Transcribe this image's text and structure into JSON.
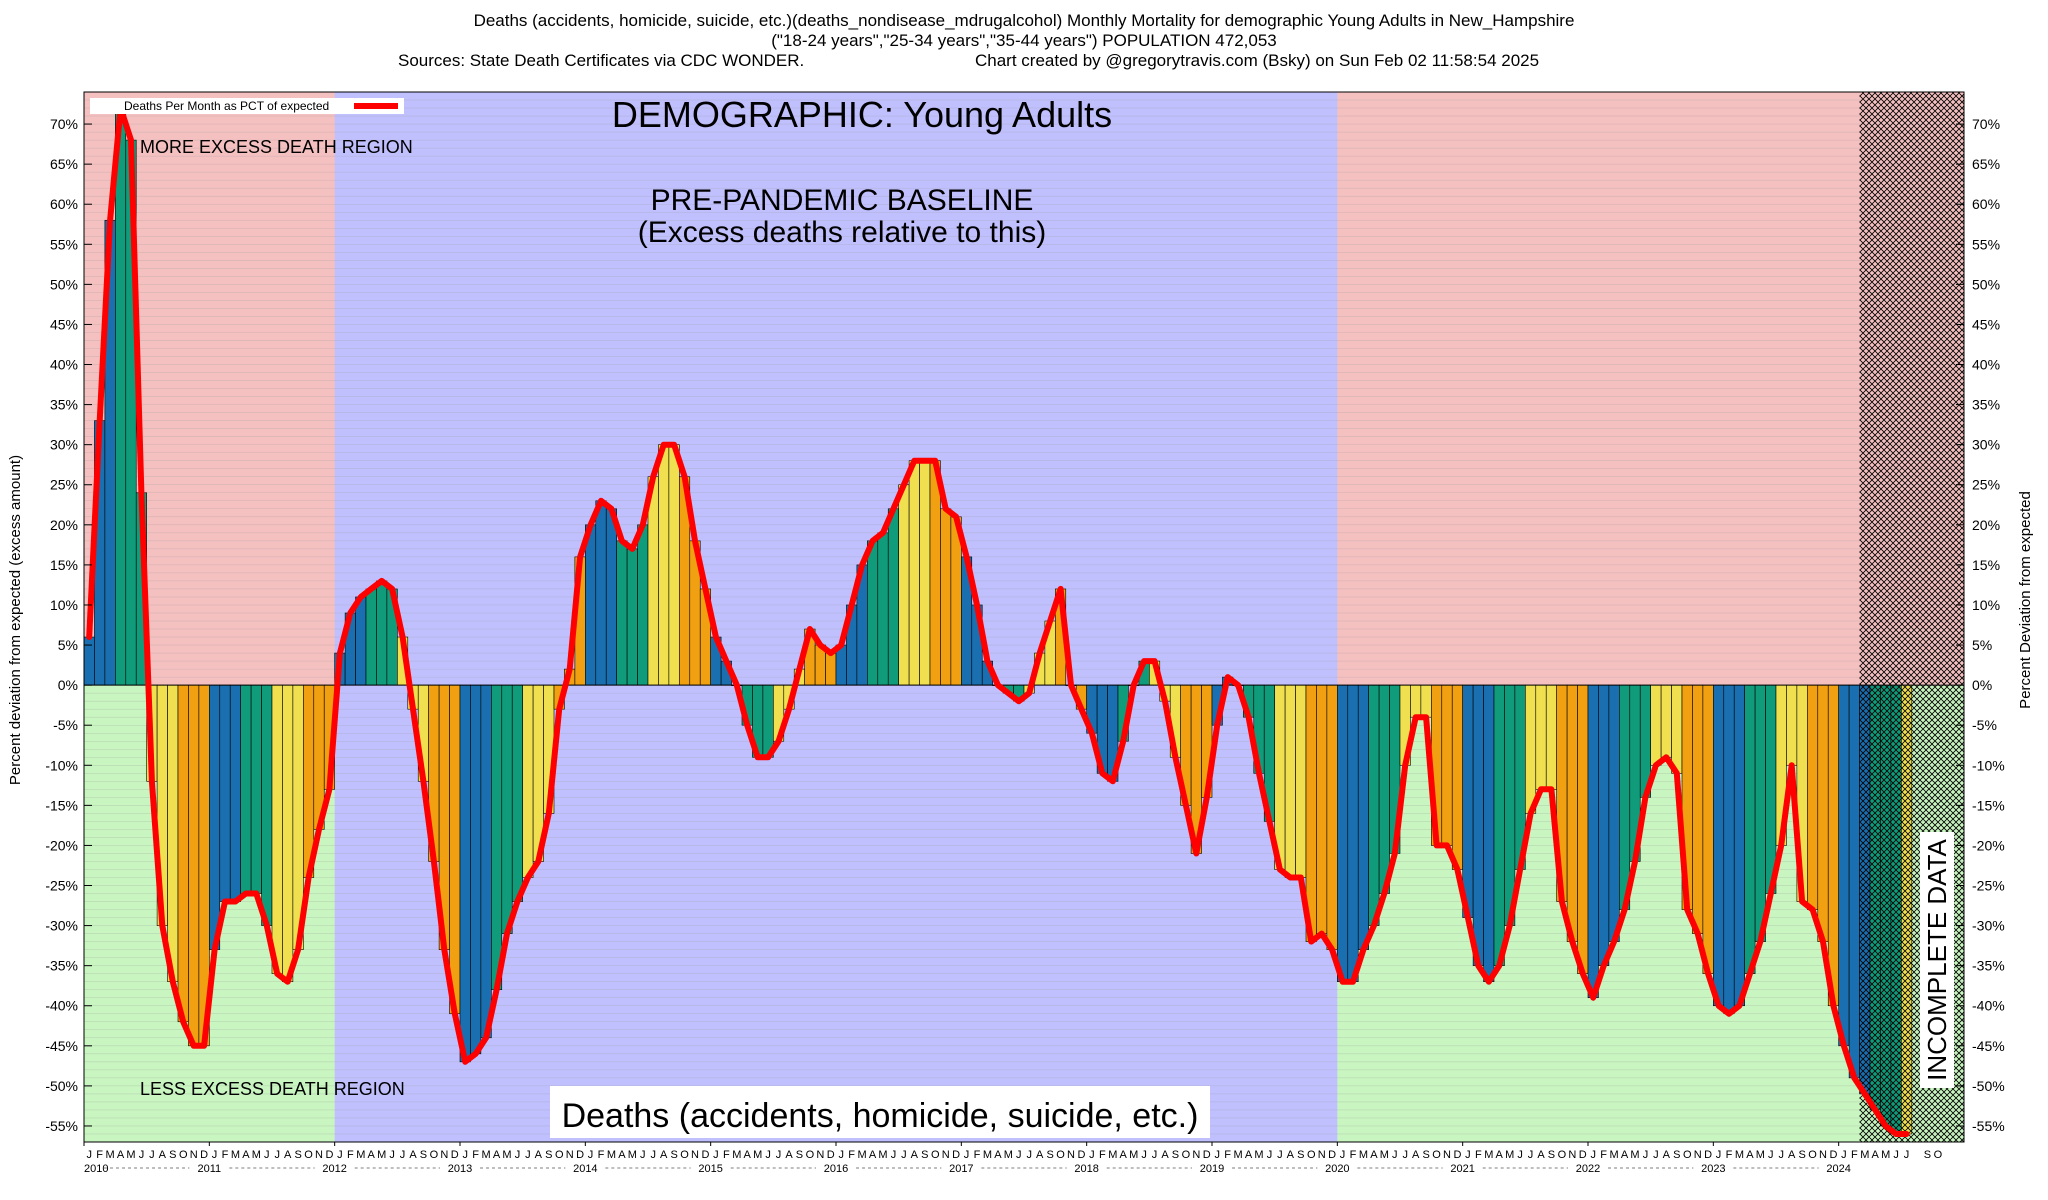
{
  "header": {
    "line1": "Deaths (accidents, homicide, suicide, etc.)(deaths_nondisease_mdrugalcohol) Monthly Mortality for demographic Young Adults in New_Hampshire",
    "line2": "(\"18-24 years\",\"25-34 years\",\"35-44 years\") POPULATION 472,053",
    "line3_left": "Sources: State Death Certificates via CDC WONDER.",
    "line3_right": "Chart created by @gregorytravis.com (Bsky) on Sun Feb 02 11:58:54 2025"
  },
  "colors": {
    "excess_region": "#f5c0c0",
    "deficit_region": "#c8f5c0",
    "baseline_region": "#c0c0ff",
    "line": "#ff0000",
    "bar_palette": [
      "#1a6fb0",
      "#109c7a",
      "#f0e050",
      "#f0a010"
    ]
  },
  "chart_data": {
    "type": "bar",
    "title": "DEMOGRAPHIC: Young Adults",
    "subtitle": "Deaths (accidents, homicide, suicide, etc.)",
    "ylabel_left": "Percent deviation from expected (excess amount)",
    "ylabel_right": "Percent Deviation from expected",
    "legend": "Deaths Per Month as PCT of expected",
    "legend_position": "top-left",
    "ylim": [
      -57,
      74
    ],
    "yticks": [
      -55,
      -50,
      -45,
      -40,
      -35,
      -30,
      -25,
      -20,
      -15,
      -10,
      -5,
      0,
      5,
      10,
      15,
      20,
      25,
      30,
      35,
      40,
      45,
      50,
      55,
      60,
      65,
      70
    ],
    "x_start": "2010-01",
    "years": [
      "2010",
      "2011",
      "2012",
      "2013",
      "2014",
      "2015",
      "2016",
      "2017",
      "2018",
      "2019",
      "2020",
      "2021",
      "2022",
      "2023",
      "2024"
    ],
    "month_letters": [
      "J",
      "F",
      "M",
      "A",
      "M",
      "J",
      "J",
      "A",
      "S",
      "O",
      "N",
      "D"
    ],
    "regions": {
      "excess_label": "MORE EXCESS DEATH REGION",
      "deficit_label": "LESS EXCESS DEATH REGION",
      "baseline_label_1": "PRE-PANDEMIC BASELINE",
      "baseline_label_2": "(Excess deaths relative to this)",
      "baseline_start": "2012-01",
      "baseline_end": "2019-12",
      "incomplete_label": "INCOMPLETE DATA",
      "incomplete_start": "2024-03"
    },
    "values": [
      6,
      33,
      58,
      72,
      68,
      24,
      -12,
      -30,
      -37,
      -42,
      -45,
      -45,
      -33,
      -27,
      -27,
      -26,
      -26,
      -30,
      -36,
      -37,
      -33,
      -24,
      -18,
      -13,
      4,
      9,
      11,
      12,
      13,
      12,
      6,
      -3,
      -12,
      -22,
      -33,
      -41,
      -47,
      -46,
      -44,
      -38,
      -31,
      -27,
      -24,
      -22,
      -16,
      -3,
      2,
      16,
      20,
      23,
      22,
      18,
      17,
      20,
      26,
      30,
      30,
      26,
      18,
      12,
      6,
      3,
      0,
      -5,
      -9,
      -9,
      -7,
      -3,
      2,
      7,
      5,
      4,
      5,
      10,
      15,
      18,
      19,
      22,
      25,
      28,
      28,
      28,
      22,
      21,
      16,
      10,
      3,
      0,
      -1,
      -2,
      -1,
      4,
      8,
      12,
      0,
      -3,
      -6,
      -11,
      -12,
      -7,
      0,
      3,
      3,
      -2,
      -9,
      -15,
      -21,
      -14,
      -5,
      1,
      0,
      -4,
      -11,
      -17,
      -23,
      -24,
      -24,
      -32,
      -31,
      -33,
      -37,
      -37,
      -33,
      -30,
      -26,
      -21,
      -10,
      -4,
      -4,
      -20,
      -20,
      -23,
      -29,
      -35,
      -37,
      -35,
      -30,
      -23,
      -16,
      -13,
      -13,
      -27,
      -32,
      -36,
      -39,
      -35,
      -32,
      -28,
      -22,
      -14,
      -10,
      -9,
      -11,
      -28,
      -31,
      -36,
      -40,
      -41,
      -40,
      -36,
      -32,
      -26,
      -20,
      -10,
      -27,
      -28,
      -32,
      -40,
      -45,
      -49,
      -51,
      -53,
      -55,
      -56,
      -56
    ]
  }
}
